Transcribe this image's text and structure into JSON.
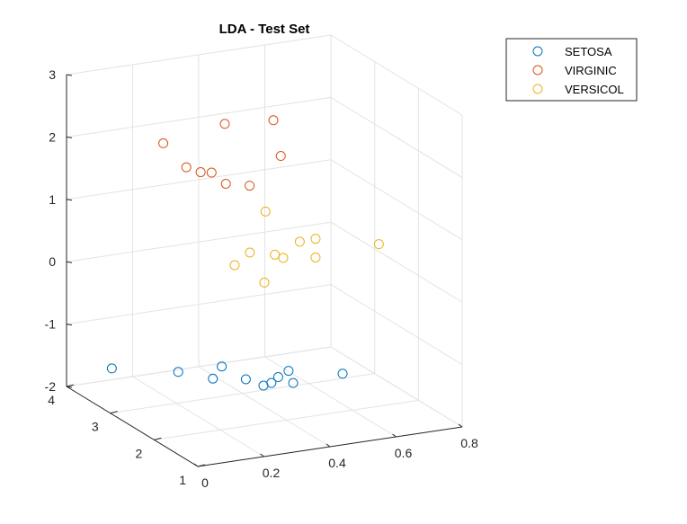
{
  "chart_data": {
    "type": "scatter",
    "title": "LDA - Test Set",
    "xlabel": "",
    "ylabel": "",
    "zlabel": "",
    "xlim": [
      0,
      0.8
    ],
    "ylim": [
      1,
      4
    ],
    "zlim": [
      -2,
      3
    ],
    "xticks": [
      "0",
      "0.2",
      "0.4",
      "0.6",
      "0.8"
    ],
    "yticks": [
      "1",
      "2",
      "3",
      "4"
    ],
    "zticks": [
      "-2",
      "-1",
      "0",
      "1",
      "2",
      "3"
    ],
    "grid": true,
    "legend_position": "top-right",
    "series": [
      {
        "name": "SETOSA",
        "color": "#0072BD",
        "points": [
          [
            0.1,
            3.72,
            -1.67
          ],
          [
            0.24,
            3.26,
            -1.64
          ],
          [
            0.28,
            2.77,
            -1.57
          ],
          [
            0.32,
            2.87,
            -1.45
          ],
          [
            0.34,
            2.47,
            -1.5
          ],
          [
            0.38,
            2.37,
            -1.59
          ],
          [
            0.4,
            2.34,
            -1.55
          ],
          [
            0.43,
            2.41,
            -1.51
          ],
          [
            0.46,
            2.4,
            -1.43
          ],
          [
            0.45,
            2.22,
            -1.54
          ],
          [
            0.56,
            1.92,
            -1.35
          ]
        ]
      },
      {
        "name": "VIRGINIC",
        "color": "#D95319",
        "points": [
          [
            0.2,
            3.3,
            2.04
          ],
          [
            0.25,
            3.15,
            1.68
          ],
          [
            0.28,
            3.05,
            1.62
          ],
          [
            0.28,
            2.8,
            1.72
          ],
          [
            0.31,
            2.7,
            1.56
          ],
          [
            0.32,
            2.8,
            2.47
          ],
          [
            0.35,
            2.46,
            1.6
          ],
          [
            0.41,
            2.37,
            2.64
          ],
          [
            0.41,
            2.2,
            2.14
          ]
        ]
      },
      {
        "name": "VERSICOL",
        "color": "#EDB120",
        "points": [
          [
            0.33,
            2.65,
            0.26
          ],
          [
            0.36,
            2.53,
            0.49
          ],
          [
            0.4,
            2.26,
            0.54
          ],
          [
            0.4,
            2.5,
            -0.01
          ],
          [
            0.42,
            2.22,
            0.49
          ],
          [
            0.41,
            2.55,
            1.1
          ],
          [
            0.47,
            2.22,
            0.71
          ],
          [
            0.49,
            2.01,
            0.53
          ],
          [
            0.49,
            2.01,
            0.83
          ],
          [
            0.63,
            1.62,
            0.8
          ]
        ]
      }
    ]
  }
}
